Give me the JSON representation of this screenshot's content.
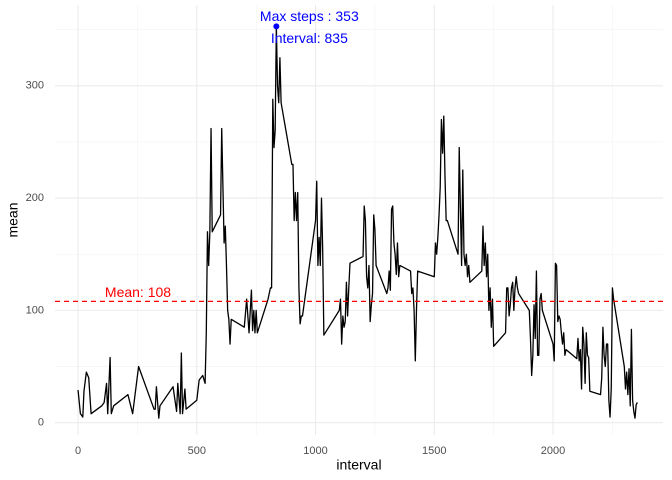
{
  "chart_data": {
    "type": "line",
    "x_label": "interval",
    "y_label": "mean",
    "color": "#000000",
    "x": [
      0,
      10,
      20,
      25,
      35,
      45,
      55,
      100,
      110,
      120,
      125,
      135,
      140,
      150,
      210,
      230,
      255,
      320,
      325,
      330,
      340,
      345,
      400,
      415,
      420,
      430,
      435,
      440,
      450,
      455,
      500,
      510,
      525,
      535,
      540,
      545,
      550,
      555,
      560,
      565,
      600,
      605,
      615,
      620,
      625,
      630,
      635,
      640,
      645,
      700,
      710,
      720,
      730,
      735,
      740,
      745,
      750,
      755,
      800,
      810,
      815,
      820,
      825,
      830,
      835,
      840,
      845,
      850,
      855,
      900,
      905,
      910,
      915,
      920,
      925,
      930,
      935,
      940,
      945,
      1000,
      1005,
      1010,
      1015,
      1020,
      1025,
      1030,
      1035,
      1100,
      1105,
      1110,
      1115,
      1120,
      1125,
      1130,
      1135,
      1140,
      1145,
      1200,
      1205,
      1210,
      1215,
      1220,
      1225,
      1230,
      1235,
      1240,
      1245,
      1250,
      1255,
      1300,
      1305,
      1310,
      1315,
      1320,
      1325,
      1330,
      1335,
      1340,
      1345,
      1350,
      1355,
      1400,
      1405,
      1410,
      1415,
      1420,
      1425,
      1430,
      1500,
      1505,
      1510,
      1515,
      1520,
      1525,
      1530,
      1535,
      1540,
      1545,
      1550,
      1555,
      1600,
      1605,
      1610,
      1615,
      1620,
      1625,
      1630,
      1635,
      1640,
      1645,
      1650,
      1700,
      1705,
      1710,
      1715,
      1720,
      1725,
      1730,
      1735,
      1740,
      1745,
      1750,
      1800,
      1805,
      1810,
      1815,
      1820,
      1825,
      1830,
      1835,
      1840,
      1845,
      1850,
      1855,
      1900,
      1905,
      1910,
      1915,
      1920,
      1925,
      1930,
      1935,
      1940,
      1945,
      1950,
      1955,
      2000,
      2005,
      2010,
      2015,
      2020,
      2025,
      2030,
      2035,
      2040,
      2045,
      2050,
      2055,
      2100,
      2105,
      2110,
      2115,
      2120,
      2125,
      2130,
      2135,
      2140,
      2145,
      2150,
      2155,
      2200,
      2205,
      2210,
      2215,
      2220,
      2225,
      2230,
      2235,
      2240,
      2245,
      2250,
      2255,
      2300,
      2305,
      2310,
      2315,
      2320,
      2325,
      2330,
      2335,
      2340,
      2345,
      2350,
      2355
    ],
    "values": [
      29,
      8,
      5,
      28,
      45,
      40,
      8,
      15,
      18,
      35,
      8,
      58,
      8,
      15,
      25,
      8,
      50,
      12,
      12,
      32,
      4,
      15,
      32,
      10,
      35,
      8,
      62,
      8,
      30,
      12,
      20,
      38,
      42,
      35,
      80,
      170,
      140,
      170,
      262,
      170,
      185,
      262,
      160,
      175,
      140,
      100,
      92,
      70,
      92,
      85,
      110,
      80,
      118,
      82,
      100,
      80,
      100,
      80,
      110,
      120,
      120,
      288,
      245,
      260,
      353,
      300,
      285,
      325,
      285,
      230,
      230,
      180,
      205,
      180,
      205,
      120,
      88,
      95,
      95,
      180,
      215,
      140,
      165,
      140,
      200,
      155,
      78,
      100,
      110,
      70,
      95,
      85,
      90,
      125,
      95,
      120,
      142,
      148,
      193,
      180,
      130,
      120,
      140,
      90,
      105,
      115,
      185,
      172,
      140,
      115,
      120,
      135,
      118,
      190,
      193,
      160,
      150,
      132,
      160,
      130,
      140,
      135,
      115,
      120,
      100,
      55,
      100,
      135,
      130,
      160,
      150,
      165,
      185,
      210,
      270,
      240,
      273,
      220,
      180,
      180,
      150,
      245,
      190,
      140,
      225,
      150,
      140,
      150,
      130,
      140,
      125,
      135,
      175,
      140,
      160,
      130,
      150,
      100,
      120,
      85,
      110,
      68,
      80,
      120,
      120,
      95,
      105,
      120,
      125,
      100,
      120,
      130,
      120,
      115,
      100,
      75,
      42,
      60,
      105,
      75,
      135,
      60,
      60,
      110,
      115,
      100,
      70,
      55,
      142,
      140,
      90,
      95,
      92,
      80,
      70,
      80,
      60,
      65,
      57,
      75,
      55,
      65,
      30,
      85,
      70,
      35,
      80,
      60,
      58,
      28,
      25,
      40,
      85,
      60,
      50,
      70,
      70,
      20,
      5,
      30,
      120,
      110,
      50,
      30,
      45,
      25,
      48,
      15,
      83,
      20,
      10,
      4,
      16,
      18
    ],
    "xlim": [
      -97,
      2463
    ],
    "ylim": [
      -11,
      372
    ],
    "xticks": [
      0,
      500,
      1000,
      1500,
      2000
    ],
    "yticks": [
      0,
      100,
      200,
      300
    ],
    "grid": true,
    "max_point": {
      "x": 835,
      "y": 353,
      "color": "#0000ff",
      "label": "Max steps : 353",
      "sublabel": "Interval: 835"
    },
    "mean_line": {
      "value": 108,
      "color": "#ff0000",
      "label": "Mean:  108"
    }
  }
}
